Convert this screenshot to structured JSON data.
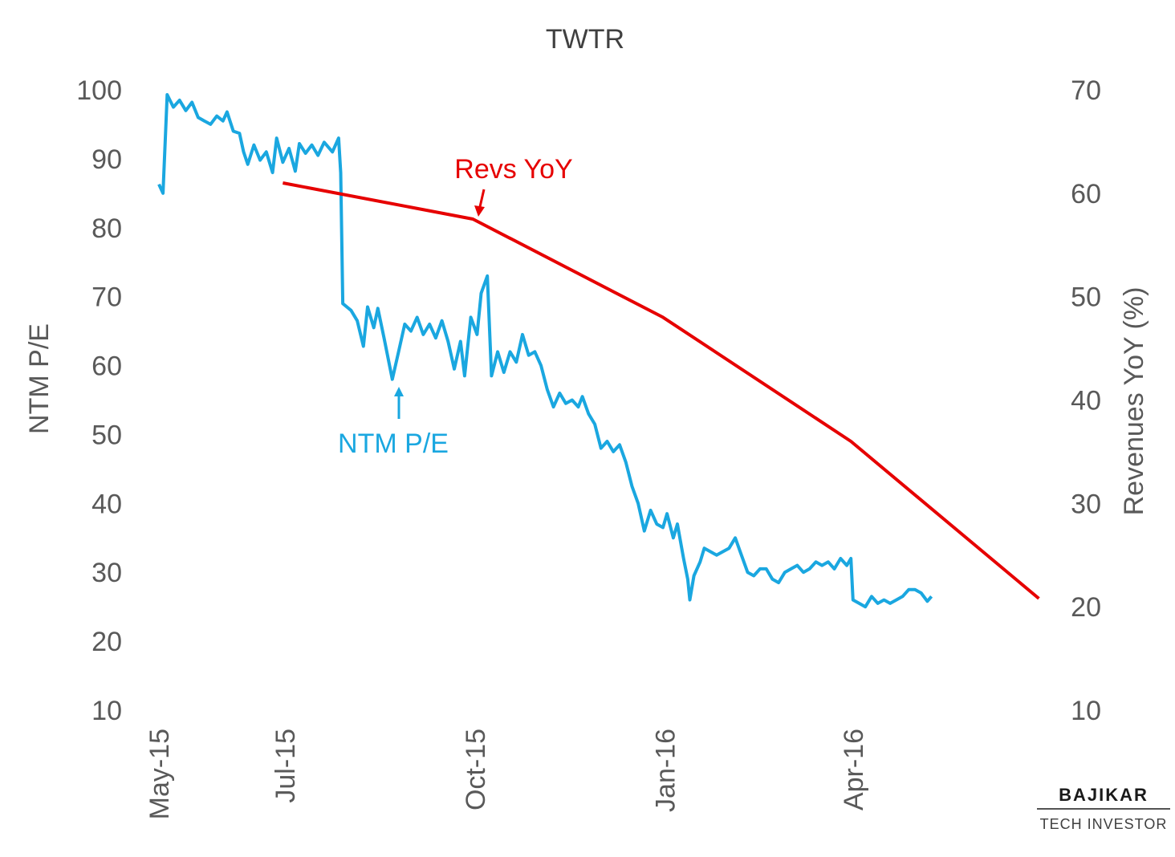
{
  "chart_data": {
    "type": "line",
    "title": "TWTR",
    "x_axis": {
      "tick_labels": [
        "May-15",
        "Jul-15",
        "Oct-15",
        "Jan-16",
        "Apr-16"
      ]
    },
    "y_left": {
      "label": "NTM P/E",
      "range": [
        10,
        100
      ],
      "ticks": [
        100,
        90,
        80,
        70,
        60,
        50,
        40,
        30,
        20,
        10
      ]
    },
    "y_right": {
      "label": "Revenues YoY (%)",
      "range": [
        10,
        70
      ],
      "ticks": [
        70,
        60,
        50,
        40,
        30,
        20,
        10
      ]
    },
    "grid": false,
    "series": [
      {
        "name": "NTM P/E",
        "axis": "left",
        "color": "#1aa7e0",
        "points": [
          [
            "2015-05-01",
            86.3
          ],
          [
            "2015-05-03",
            85.0
          ],
          [
            "2015-05-05",
            99.3
          ],
          [
            "2015-05-08",
            97.5
          ],
          [
            "2015-05-11",
            98.5
          ],
          [
            "2015-05-14",
            97.0
          ],
          [
            "2015-05-17",
            98.2
          ],
          [
            "2015-05-20",
            96.0
          ],
          [
            "2015-05-23",
            95.5
          ],
          [
            "2015-05-26",
            95.0
          ],
          [
            "2015-05-29",
            96.2
          ],
          [
            "2015-06-01",
            95.5
          ],
          [
            "2015-06-03",
            96.8
          ],
          [
            "2015-06-06",
            94.0
          ],
          [
            "2015-06-09",
            93.7
          ],
          [
            "2015-06-11",
            91.0
          ],
          [
            "2015-06-13",
            89.2
          ],
          [
            "2015-06-16",
            92.0
          ],
          [
            "2015-06-19",
            89.8
          ],
          [
            "2015-06-22",
            91.0
          ],
          [
            "2015-06-25",
            88.0
          ],
          [
            "2015-06-27",
            93.0
          ],
          [
            "2015-06-30",
            89.5
          ],
          [
            "2015-07-03",
            91.5
          ],
          [
            "2015-07-06",
            88.2
          ],
          [
            "2015-07-08",
            92.2
          ],
          [
            "2015-07-11",
            90.8
          ],
          [
            "2015-07-14",
            92.0
          ],
          [
            "2015-07-17",
            90.5
          ],
          [
            "2015-07-20",
            92.4
          ],
          [
            "2015-07-24",
            91.0
          ],
          [
            "2015-07-27",
            93.0
          ],
          [
            "2015-07-28",
            88.0
          ],
          [
            "2015-07-29",
            69.0
          ],
          [
            "2015-08-02",
            68.0
          ],
          [
            "2015-08-05",
            66.5
          ],
          [
            "2015-08-08",
            62.8
          ],
          [
            "2015-08-10",
            68.5
          ],
          [
            "2015-08-13",
            65.5
          ],
          [
            "2015-08-15",
            68.3
          ],
          [
            "2015-08-18",
            64.0
          ],
          [
            "2015-08-22",
            58.0
          ],
          [
            "2015-08-25",
            62.0
          ],
          [
            "2015-08-28",
            66.0
          ],
          [
            "2015-08-31",
            65.0
          ],
          [
            "2015-09-03",
            67.0
          ],
          [
            "2015-09-06",
            64.5
          ],
          [
            "2015-09-09",
            66.0
          ],
          [
            "2015-09-12",
            64.0
          ],
          [
            "2015-09-15",
            66.5
          ],
          [
            "2015-09-18",
            63.5
          ],
          [
            "2015-09-21",
            59.5
          ],
          [
            "2015-09-24",
            63.5
          ],
          [
            "2015-09-26",
            58.5
          ],
          [
            "2015-09-29",
            67.0
          ],
          [
            "2015-10-02",
            64.5
          ],
          [
            "2015-10-04",
            70.5
          ],
          [
            "2015-10-07",
            73.0
          ],
          [
            "2015-10-09",
            58.5
          ],
          [
            "2015-10-12",
            62.0
          ],
          [
            "2015-10-15",
            59.0
          ],
          [
            "2015-10-18",
            62.0
          ],
          [
            "2015-10-21",
            60.5
          ],
          [
            "2015-10-24",
            64.5
          ],
          [
            "2015-10-27",
            61.5
          ],
          [
            "2015-10-30",
            62.0
          ],
          [
            "2015-11-02",
            60.0
          ],
          [
            "2015-11-05",
            56.5
          ],
          [
            "2015-11-08",
            54.0
          ],
          [
            "2015-11-11",
            56.0
          ],
          [
            "2015-11-14",
            54.5
          ],
          [
            "2015-11-17",
            55.0
          ],
          [
            "2015-11-20",
            54.0
          ],
          [
            "2015-11-22",
            55.5
          ],
          [
            "2015-11-25",
            53.0
          ],
          [
            "2015-11-28",
            51.5
          ],
          [
            "2015-12-01",
            48.0
          ],
          [
            "2015-12-04",
            49.0
          ],
          [
            "2015-12-07",
            47.5
          ],
          [
            "2015-12-10",
            48.5
          ],
          [
            "2015-12-13",
            46.0
          ],
          [
            "2015-12-16",
            42.5
          ],
          [
            "2015-12-19",
            40.0
          ],
          [
            "2015-12-22",
            36.0
          ],
          [
            "2015-12-25",
            39.0
          ],
          [
            "2015-12-28",
            37.0
          ],
          [
            "2015-12-31",
            36.5
          ],
          [
            "2016-01-02",
            38.5
          ],
          [
            "2016-01-05",
            35.0
          ],
          [
            "2016-01-07",
            37.0
          ],
          [
            "2016-01-10",
            32.0
          ],
          [
            "2016-01-12",
            29.0
          ],
          [
            "2016-01-13",
            26.0
          ],
          [
            "2016-01-15",
            29.5
          ],
          [
            "2016-01-18",
            31.5
          ],
          [
            "2016-01-20",
            33.5
          ],
          [
            "2016-01-23",
            33.0
          ],
          [
            "2016-01-26",
            32.5
          ],
          [
            "2016-01-29",
            33.0
          ],
          [
            "2016-02-01",
            33.5
          ],
          [
            "2016-02-04",
            35.0
          ],
          [
            "2016-02-07",
            32.5
          ],
          [
            "2016-02-10",
            30.0
          ],
          [
            "2016-02-13",
            29.5
          ],
          [
            "2016-02-16",
            30.5
          ],
          [
            "2016-02-19",
            30.5
          ],
          [
            "2016-02-22",
            29.0
          ],
          [
            "2016-02-25",
            28.5
          ],
          [
            "2016-02-28",
            30.0
          ],
          [
            "2016-03-02",
            30.5
          ],
          [
            "2016-03-05",
            31.0
          ],
          [
            "2016-03-08",
            30.0
          ],
          [
            "2016-03-11",
            30.5
          ],
          [
            "2016-03-14",
            31.5
          ],
          [
            "2016-03-17",
            31.0
          ],
          [
            "2016-03-20",
            31.5
          ],
          [
            "2016-03-23",
            30.5
          ],
          [
            "2016-03-26",
            32.0
          ],
          [
            "2016-03-29",
            31.0
          ],
          [
            "2016-03-31",
            32.0
          ],
          [
            "2016-04-01",
            26.0
          ],
          [
            "2016-04-04",
            25.5
          ],
          [
            "2016-04-07",
            25.0
          ],
          [
            "2016-04-10",
            26.5
          ],
          [
            "2016-04-13",
            25.5
          ],
          [
            "2016-04-16",
            26.0
          ],
          [
            "2016-04-19",
            25.5
          ],
          [
            "2016-04-22",
            26.0
          ],
          [
            "2016-04-25",
            26.5
          ],
          [
            "2016-04-28",
            27.5
          ],
          [
            "2016-05-01",
            27.5
          ],
          [
            "2016-05-04",
            27.0
          ],
          [
            "2016-05-07",
            25.8
          ],
          [
            "2016-05-09",
            26.5
          ]
        ]
      },
      {
        "name": "Revs YoY",
        "axis": "right",
        "color": "#e60000",
        "points": [
          [
            "2015-06-30",
            61.0
          ],
          [
            "2015-09-30",
            57.5
          ],
          [
            "2015-12-31",
            48.0
          ],
          [
            "2016-03-31",
            36.0
          ],
          [
            "2016-06-30",
            20.8
          ]
        ]
      }
    ],
    "annotations": [
      {
        "text": "Revs YoY",
        "series": "Revs YoY",
        "color": "#e60000"
      },
      {
        "text": "NTM P/E",
        "series": "NTM P/E",
        "color": "#1aa7e0"
      }
    ]
  },
  "branding": {
    "name": "BAJIKAR",
    "tagline": "TECH INVESTOR"
  }
}
